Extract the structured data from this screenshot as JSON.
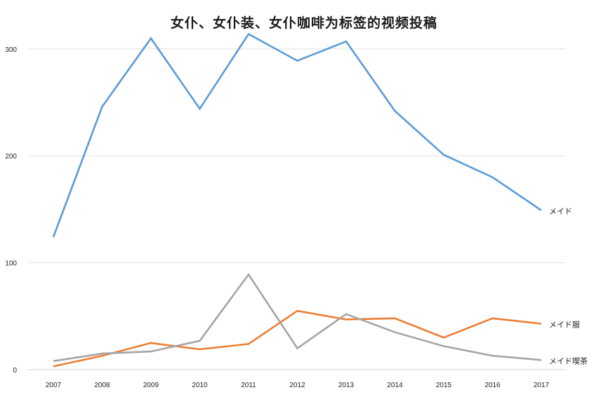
{
  "chart_data": {
    "type": "line",
    "title": "女仆、女仆装、女仆咖啡为标签的视频投稿",
    "xlabel": "",
    "ylabel": "",
    "categories": [
      "2007",
      "2008",
      "2009",
      "2010",
      "2011",
      "2012",
      "2013",
      "2014",
      "2015",
      "2016",
      "2017"
    ],
    "ylim": [
      0,
      320
    ],
    "yticks": [
      "0",
      "100",
      "200",
      "300"
    ],
    "grid": true,
    "legend": "end-of-line labels",
    "series": [
      {
        "name": "メイド",
        "color": "#5b9bd5",
        "values": [
          124,
          246,
          310,
          244,
          314,
          289,
          307,
          242,
          201,
          180,
          149
        ]
      },
      {
        "name": "メイド服",
        "color": "#ed7d31",
        "values": [
          3,
          13,
          25,
          19,
          24,
          55,
          47,
          48,
          30,
          48,
          43
        ]
      },
      {
        "name": "メイド喫茶",
        "color": "#a5a5a5",
        "values": [
          8,
          15,
          17,
          27,
          89,
          20,
          52,
          35,
          22,
          13,
          9
        ]
      }
    ]
  }
}
